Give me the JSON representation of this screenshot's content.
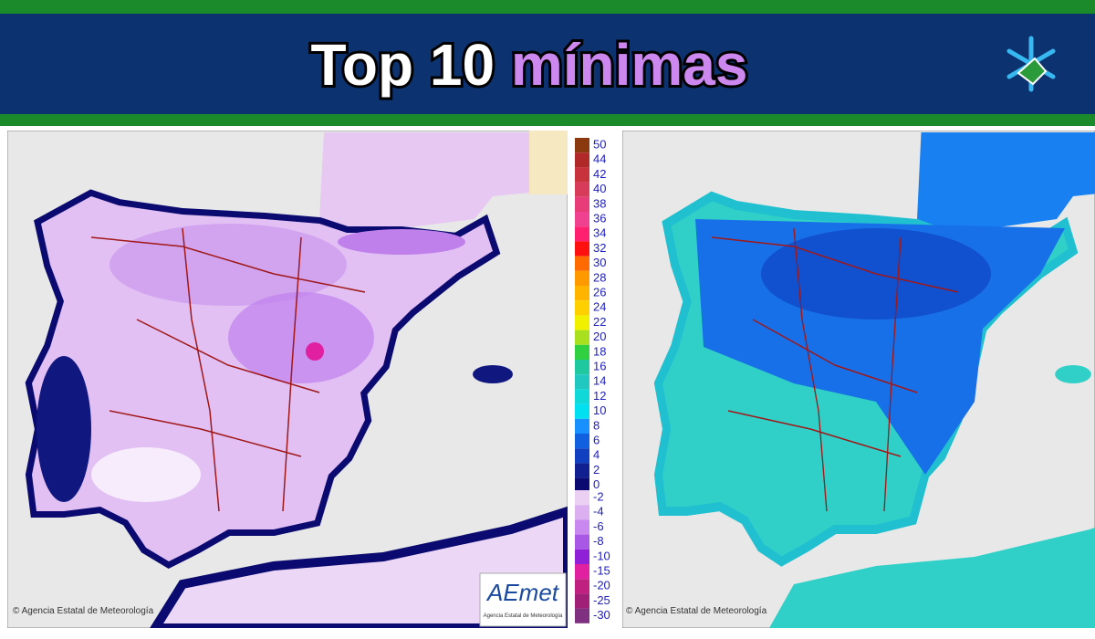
{
  "header": {
    "title_part1": "Top 10",
    "title_part2": "mínimas"
  },
  "legend": {
    "entries": [
      {
        "label": 50,
        "color": "#8b3a10"
      },
      {
        "label": 44,
        "color": "#b02828"
      },
      {
        "label": 42,
        "color": "#c8323c"
      },
      {
        "label": 40,
        "color": "#d83a5a"
      },
      {
        "label": 38,
        "color": "#e83c78"
      },
      {
        "label": 36,
        "color": "#f04090"
      },
      {
        "label": 34,
        "color": "#ff2070"
      },
      {
        "label": 32,
        "color": "#ff1010"
      },
      {
        "label": 30,
        "color": "#ff6a00"
      },
      {
        "label": 28,
        "color": "#ff9900"
      },
      {
        "label": 26,
        "color": "#ffb400"
      },
      {
        "label": 24,
        "color": "#ffd000"
      },
      {
        "label": 22,
        "color": "#f0f000"
      },
      {
        "label": 20,
        "color": "#a8e020"
      },
      {
        "label": 18,
        "color": "#30d040"
      },
      {
        "label": 16,
        "color": "#20c8a0"
      },
      {
        "label": 14,
        "color": "#20c8c0"
      },
      {
        "label": 12,
        "color": "#10d8d8"
      },
      {
        "label": 10,
        "color": "#00e0f0"
      },
      {
        "label": 8,
        "color": "#1890ff"
      },
      {
        "label": 6,
        "color": "#1060e0"
      },
      {
        "label": 4,
        "color": "#1040c0"
      },
      {
        "label": 2,
        "color": "#102090"
      },
      {
        "label": 0,
        "color": "#0a0a70"
      }
    ],
    "negative_entries": [
      {
        "label": -2,
        "color": "#ecd0f4"
      },
      {
        "label": -4,
        "color": "#dcb0f0"
      },
      {
        "label": -6,
        "color": "#c888f0"
      },
      {
        "label": -8,
        "color": "#a858e4"
      },
      {
        "label": -10,
        "color": "#9020d8"
      },
      {
        "label": -15,
        "color": "#e020a0"
      },
      {
        "label": -20,
        "color": "#c02080"
      },
      {
        "label": -25,
        "color": "#a02078"
      },
      {
        "label": -30,
        "color": "#803080"
      }
    ]
  },
  "maps": {
    "left_credit": "Agencia Estatal de Meteorología",
    "right_credit": "Agencia Estatal de Meteorología",
    "logo": "AEmet",
    "logo_subtitle": "Agencia Estatal de Meteorología"
  }
}
